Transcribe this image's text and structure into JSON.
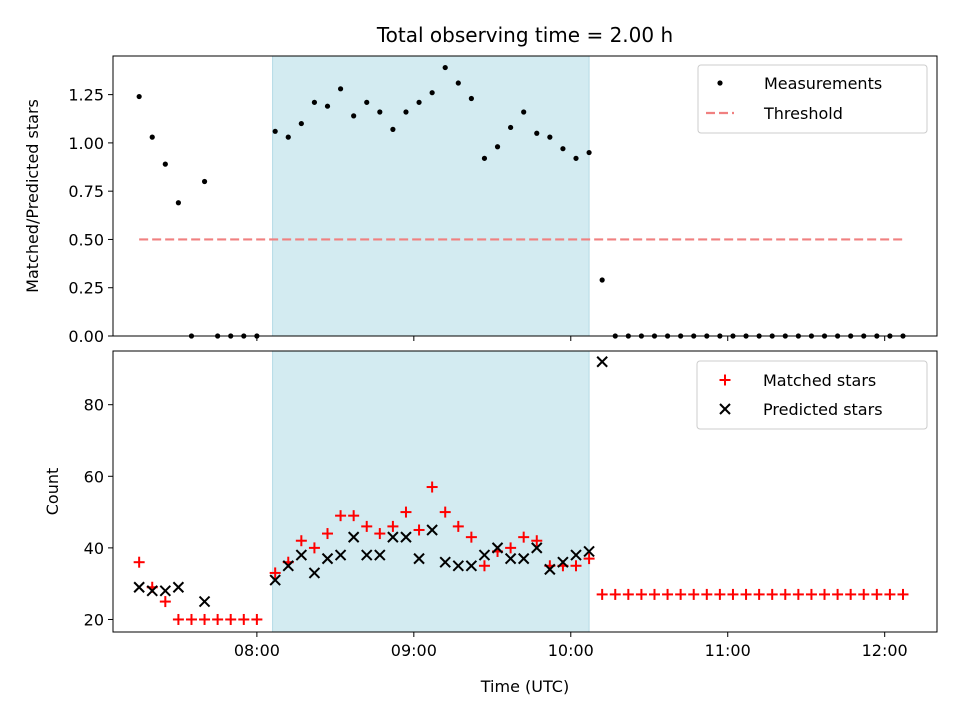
{
  "figure": {
    "title": "Total observing time = 2.00 h"
  },
  "chart_data": [
    {
      "type": "scatter",
      "panel": "top",
      "ylabel": "Matched/Predicted stars",
      "xlim": [
        "07:05",
        "12:20"
      ],
      "ylim": [
        0,
        1.45
      ],
      "yticks": [
        0.0,
        0.25,
        0.5,
        0.75,
        1.0,
        1.25
      ],
      "ytick_labels": [
        "0.00",
        "0.25",
        "0.50",
        "0.75",
        "1.00",
        "1.25"
      ],
      "shaded_interval": [
        "08:06",
        "10:07"
      ],
      "shade_color": "#d3ebf1",
      "legend": {
        "placement": "top-right",
        "entries": [
          {
            "label": "Measurements",
            "marker": "dot",
            "color": "#000000"
          },
          {
            "label": "Threshold",
            "marker": "dashed-line",
            "color": "#f08080"
          }
        ]
      },
      "series": [
        {
          "name": "Measurements",
          "color": "#000000",
          "points": [
            [
              "07:15",
              1.24
            ],
            [
              "07:20",
              1.03
            ],
            [
              "07:25",
              0.89
            ],
            [
              "07:30",
              0.69
            ],
            [
              "07:35",
              0.0
            ],
            [
              "07:40",
              0.8
            ],
            [
              "07:45",
              0.0
            ],
            [
              "07:50",
              0.0
            ],
            [
              "07:55",
              0.0
            ],
            [
              "08:00",
              0.0
            ],
            [
              "08:07",
              1.06
            ],
            [
              "08:12",
              1.03
            ],
            [
              "08:17",
              1.1
            ],
            [
              "08:22",
              1.21
            ],
            [
              "08:27",
              1.19
            ],
            [
              "08:32",
              1.28
            ],
            [
              "08:37",
              1.14
            ],
            [
              "08:42",
              1.21
            ],
            [
              "08:47",
              1.16
            ],
            [
              "08:52",
              1.07
            ],
            [
              "08:57",
              1.16
            ],
            [
              "09:02",
              1.21
            ],
            [
              "09:07",
              1.26
            ],
            [
              "09:12",
              1.39
            ],
            [
              "09:17",
              1.31
            ],
            [
              "09:22",
              1.23
            ],
            [
              "09:27",
              0.92
            ],
            [
              "09:32",
              0.98
            ],
            [
              "09:37",
              1.08
            ],
            [
              "09:42",
              1.16
            ],
            [
              "09:47",
              1.05
            ],
            [
              "09:52",
              1.03
            ],
            [
              "09:57",
              0.97
            ],
            [
              "10:02",
              0.92
            ],
            [
              "10:07",
              0.95
            ],
            [
              "10:12",
              0.29
            ],
            [
              "10:17",
              0.0
            ],
            [
              "10:22",
              0.0
            ],
            [
              "10:27",
              0.0
            ],
            [
              "10:32",
              0.0
            ],
            [
              "10:37",
              0.0
            ],
            [
              "10:42",
              0.0
            ],
            [
              "10:47",
              0.0
            ],
            [
              "10:52",
              0.0
            ],
            [
              "10:57",
              0.0
            ],
            [
              "11:02",
              0.0
            ],
            [
              "11:07",
              0.0
            ],
            [
              "11:12",
              0.0
            ],
            [
              "11:17",
              0.0
            ],
            [
              "11:22",
              0.0
            ],
            [
              "11:27",
              0.0
            ],
            [
              "11:32",
              0.0
            ],
            [
              "11:37",
              0.0
            ],
            [
              "11:42",
              0.0
            ],
            [
              "11:47",
              0.0
            ],
            [
              "11:52",
              0.0
            ],
            [
              "11:57",
              0.0
            ],
            [
              "12:02",
              0.0
            ],
            [
              "12:07",
              0.0
            ]
          ]
        },
        {
          "name": "Threshold",
          "color": "#f08080",
          "style": "dashed",
          "points": [
            [
              "07:15",
              0.5
            ],
            [
              "12:07",
              0.5
            ]
          ]
        }
      ]
    },
    {
      "type": "scatter",
      "panel": "bottom",
      "xlabel": "Time (UTC)",
      "ylabel": "Count",
      "xlim": [
        "07:05",
        "12:20"
      ],
      "ylim": [
        16.5,
        95
      ],
      "yticks": [
        20,
        40,
        60,
        80
      ],
      "ytick_labels": [
        "20",
        "40",
        "60",
        "80"
      ],
      "xticks": [
        "08:00",
        "09:00",
        "10:00",
        "11:00",
        "12:00"
      ],
      "xtick_labels": [
        "08:00",
        "09:00",
        "10:00",
        "11:00",
        "12:00"
      ],
      "shaded_interval": [
        "08:06",
        "10:07"
      ],
      "shade_color": "#d3ebf1",
      "legend": {
        "placement": "top-right",
        "entries": [
          {
            "label": "Matched stars",
            "marker": "plus",
            "color": "#ff0000"
          },
          {
            "label": "Predicted stars",
            "marker": "x",
            "color": "#000000"
          }
        ]
      },
      "series": [
        {
          "name": "Matched stars",
          "marker": "plus",
          "color": "#ff0000",
          "points": [
            [
              "07:15",
              36
            ],
            [
              "07:20",
              29
            ],
            [
              "07:25",
              25
            ],
            [
              "07:30",
              20
            ],
            [
              "07:35",
              20
            ],
            [
              "07:40",
              20
            ],
            [
              "07:45",
              20
            ],
            [
              "07:50",
              20
            ],
            [
              "07:55",
              20
            ],
            [
              "08:00",
              20
            ],
            [
              "08:07",
              33
            ],
            [
              "08:12",
              36
            ],
            [
              "08:17",
              42
            ],
            [
              "08:22",
              40
            ],
            [
              "08:27",
              44
            ],
            [
              "08:32",
              49
            ],
            [
              "08:37",
              49
            ],
            [
              "08:42",
              46
            ],
            [
              "08:47",
              44
            ],
            [
              "08:52",
              46
            ],
            [
              "08:57",
              50
            ],
            [
              "09:02",
              45
            ],
            [
              "09:07",
              57
            ],
            [
              "09:12",
              50
            ],
            [
              "09:17",
              46
            ],
            [
              "09:22",
              43
            ],
            [
              "09:27",
              35
            ],
            [
              "09:32",
              39
            ],
            [
              "09:37",
              40
            ],
            [
              "09:42",
              43
            ],
            [
              "09:47",
              42
            ],
            [
              "09:52",
              35
            ],
            [
              "09:57",
              35
            ],
            [
              "10:02",
              35
            ],
            [
              "10:07",
              37
            ],
            [
              "10:12",
              27
            ],
            [
              "10:17",
              27
            ],
            [
              "10:22",
              27
            ],
            [
              "10:27",
              27
            ],
            [
              "10:32",
              27
            ],
            [
              "10:37",
              27
            ],
            [
              "10:42",
              27
            ],
            [
              "10:47",
              27
            ],
            [
              "10:52",
              27
            ],
            [
              "10:57",
              27
            ],
            [
              "11:02",
              27
            ],
            [
              "11:07",
              27
            ],
            [
              "11:12",
              27
            ],
            [
              "11:17",
              27
            ],
            [
              "11:22",
              27
            ],
            [
              "11:27",
              27
            ],
            [
              "11:32",
              27
            ],
            [
              "11:37",
              27
            ],
            [
              "11:42",
              27
            ],
            [
              "11:47",
              27
            ],
            [
              "11:52",
              27
            ],
            [
              "11:57",
              27
            ],
            [
              "12:02",
              27
            ],
            [
              "12:07",
              27
            ]
          ]
        },
        {
          "name": "Predicted stars",
          "marker": "x",
          "color": "#000000",
          "points": [
            [
              "07:15",
              29
            ],
            [
              "07:20",
              28
            ],
            [
              "07:25",
              28
            ],
            [
              "07:30",
              29
            ],
            [
              "07:40",
              25
            ],
            [
              "08:07",
              31
            ],
            [
              "08:12",
              35
            ],
            [
              "08:17",
              38
            ],
            [
              "08:22",
              33
            ],
            [
              "08:27",
              37
            ],
            [
              "08:32",
              38
            ],
            [
              "08:37",
              43
            ],
            [
              "08:42",
              38
            ],
            [
              "08:47",
              38
            ],
            [
              "08:52",
              43
            ],
            [
              "08:57",
              43
            ],
            [
              "09:02",
              37
            ],
            [
              "09:07",
              45
            ],
            [
              "09:12",
              36
            ],
            [
              "09:17",
              35
            ],
            [
              "09:22",
              35
            ],
            [
              "09:27",
              38
            ],
            [
              "09:32",
              40
            ],
            [
              "09:37",
              37
            ],
            [
              "09:42",
              37
            ],
            [
              "09:47",
              40
            ],
            [
              "09:52",
              34
            ],
            [
              "09:57",
              36
            ],
            [
              "10:02",
              38
            ],
            [
              "10:07",
              39
            ],
            [
              "10:12",
              92
            ]
          ]
        }
      ]
    }
  ]
}
